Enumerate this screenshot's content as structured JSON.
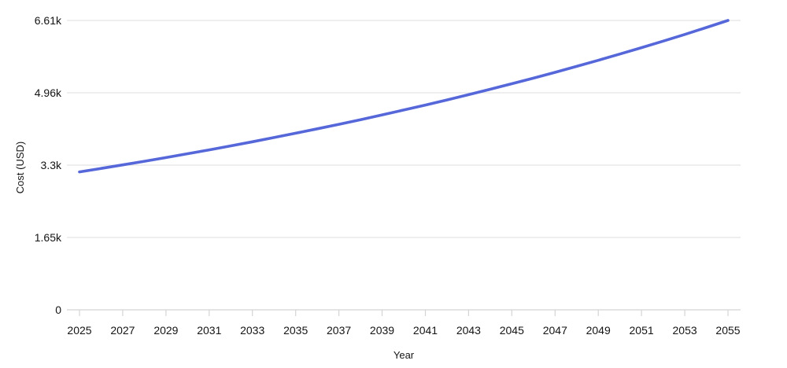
{
  "chart_data": {
    "type": "line",
    "title": "",
    "xlabel": "Year",
    "ylabel": "Cost (USD)",
    "x": [
      2025,
      2026,
      2027,
      2028,
      2029,
      2030,
      2031,
      2032,
      2033,
      2034,
      2035,
      2036,
      2037,
      2038,
      2039,
      2040,
      2041,
      2042,
      2043,
      2044,
      2045,
      2046,
      2047,
      2048,
      2049,
      2050,
      2051,
      2052,
      2053,
      2054,
      2055
    ],
    "series": [
      {
        "name": "Cost (USD)",
        "values": [
          3152,
          3231,
          3312,
          3394,
          3479,
          3566,
          3655,
          3747,
          3840,
          3936,
          4035,
          4136,
          4239,
          4345,
          4454,
          4565,
          4679,
          4796,
          4916,
          5039,
          5165,
          5294,
          5426,
          5562,
          5701,
          5844,
          5990,
          6140,
          6293,
          6450,
          6612
        ]
      }
    ],
    "xtick_labels": [
      "2025",
      "2027",
      "2029",
      "2031",
      "2033",
      "2035",
      "2037",
      "2039",
      "2041",
      "2043",
      "2045",
      "2047",
      "2049",
      "2051",
      "2053",
      "2055"
    ],
    "xticks": [
      2025,
      2027,
      2029,
      2031,
      2033,
      2035,
      2037,
      2039,
      2041,
      2043,
      2045,
      2047,
      2049,
      2051,
      2053,
      2055
    ],
    "ytick_labels": [
      "0",
      "1.65k",
      "3.3k",
      "4.96k",
      "6.61k"
    ],
    "ytick_values": [
      0,
      1653,
      3306,
      4959,
      6612
    ],
    "xlim": [
      2025,
      2055
    ],
    "ylim": [
      0,
      6612
    ],
    "grid": "horizontal-only",
    "legend": "none"
  },
  "colors": {
    "line": "#5567d9",
    "gridline": "#e3e3e3",
    "axis": "#d4d4d4",
    "text": "#141414",
    "background": "#ffffff"
  }
}
